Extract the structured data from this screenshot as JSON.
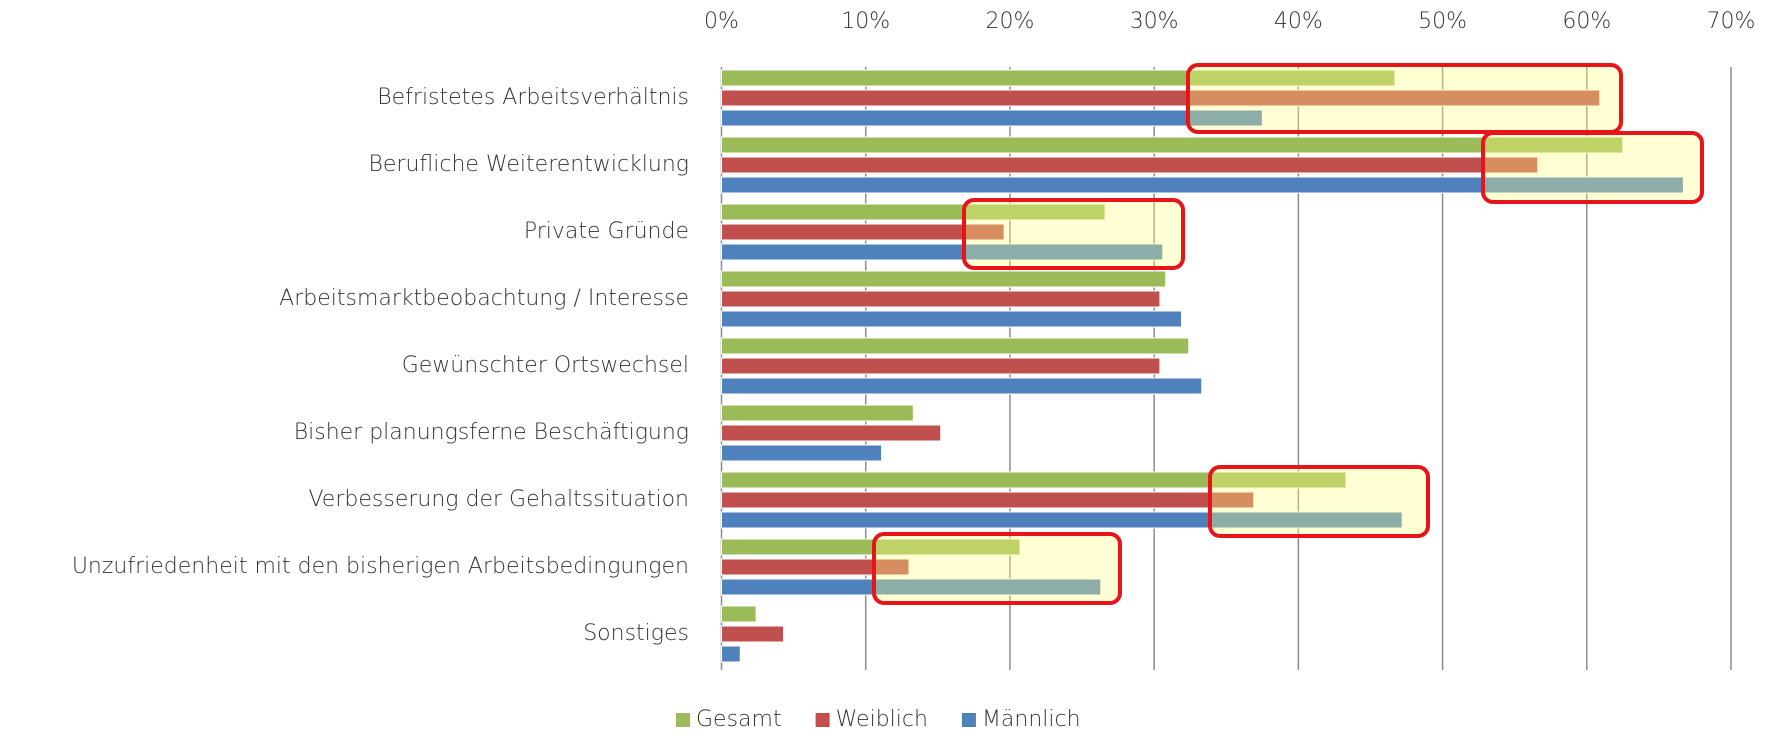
{
  "chart_data": {
    "type": "hbar",
    "categories": [
      "Befristetes Arbeitsverhältnis",
      "Berufliche Weiterentwicklung",
      "Private Gründe",
      "Arbeitsmarktbeobachtung / Interesse",
      "Gewünschter Ortswechsel",
      "Bisher planungsferne Beschäftigung",
      "Verbesserung der Gehaltssituation",
      "Unzufriedenheit mit den bisherigen Arbeitsbedingungen",
      "Sonstiges"
    ],
    "series": [
      {
        "name": "Gesamt",
        "color": "#9bbb59",
        "values": [
          46.7,
          62.5,
          26.6,
          30.8,
          32.4,
          13.3,
          43.3,
          20.7,
          2.4
        ]
      },
      {
        "name": "Weiblich",
        "color": "#c0504d",
        "values": [
          60.9,
          56.6,
          19.6,
          30.4,
          30.4,
          15.2,
          36.9,
          13.0,
          4.3
        ]
      },
      {
        "name": "Männlich",
        "color": "#4f81bd",
        "values": [
          37.5,
          66.7,
          30.6,
          31.9,
          33.3,
          11.1,
          47.2,
          26.3,
          1.3
        ]
      }
    ],
    "xlim": [
      0,
      70
    ],
    "xticks": [
      {
        "value": 0,
        "label": "0%"
      },
      {
        "value": 10,
        "label": "10%"
      },
      {
        "value": 20,
        "label": "20%"
      },
      {
        "value": 30,
        "label": "30%"
      },
      {
        "value": 40,
        "label": "40%"
      },
      {
        "value": 50,
        "label": "50%"
      },
      {
        "value": 60,
        "label": "60%"
      },
      {
        "value": 70,
        "label": "70%"
      }
    ],
    "grid": true,
    "legend": "bottom"
  }
}
